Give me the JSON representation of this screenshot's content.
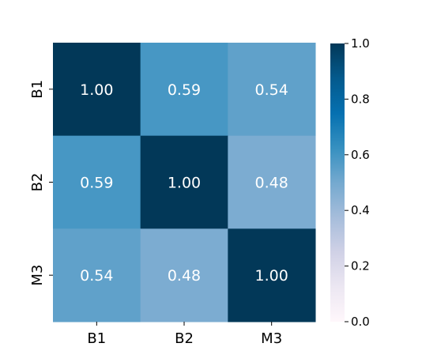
{
  "chart_data": {
    "type": "heatmap",
    "title": "",
    "xlabel": "",
    "ylabel": "",
    "x_categories": [
      "B1",
      "B2",
      "M3"
    ],
    "y_categories": [
      "B1",
      "B2",
      "M3"
    ],
    "values": [
      [
        1.0,
        0.59,
        0.54
      ],
      [
        0.59,
        1.0,
        0.48
      ],
      [
        0.54,
        0.48,
        1.0
      ]
    ],
    "cell_labels": [
      [
        "1.00",
        "0.59",
        "0.54"
      ],
      [
        "0.59",
        "1.00",
        "0.48"
      ],
      [
        "0.54",
        "0.48",
        "1.00"
      ]
    ],
    "label_colors": {
      "B1": "#000000",
      "B2": "#000000",
      "M3": "#ff0000"
    },
    "colormap": "PuBu",
    "vmin": 0.0,
    "vmax": 1.0,
    "colorbar": {
      "placement": "right",
      "ticks": [
        0.0,
        0.2,
        0.4,
        0.6,
        0.8,
        1.0
      ],
      "tick_labels": [
        "0.0",
        "0.2",
        "0.4",
        "0.6",
        "0.8",
        "1.0"
      ]
    },
    "annotation_color": "#ffffff",
    "grid": false,
    "legend": "colorbar-right"
  }
}
